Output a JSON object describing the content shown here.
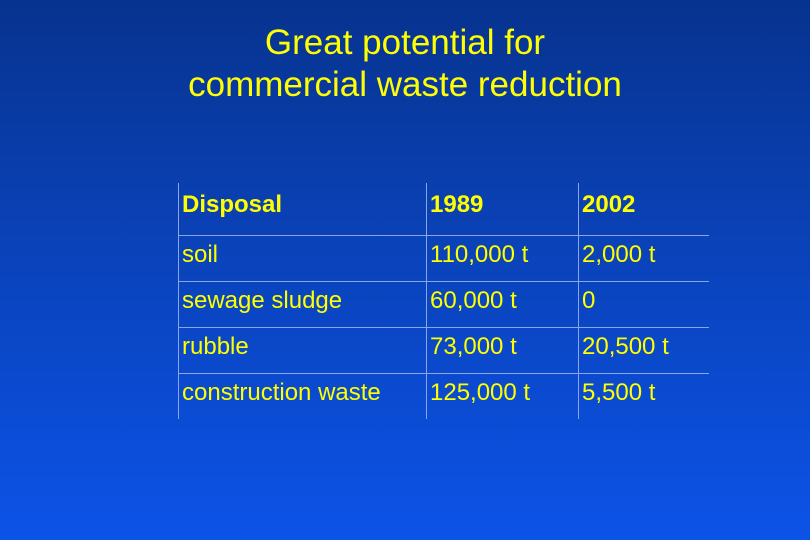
{
  "title": {
    "line1": "Great potential for",
    "line2": "commercial waste reduction"
  },
  "table": {
    "headers": [
      "Disposal",
      "1989",
      "2002"
    ],
    "rows": [
      [
        "soil",
        "110,000 t",
        "2,000 t"
      ],
      [
        "sewage sludge",
        "60,000 t",
        "0"
      ],
      [
        "rubble",
        "73,000 t",
        "20,500 t"
      ],
      [
        "construction waste",
        "125,000 t",
        "5,500 t"
      ]
    ]
  },
  "colors": {
    "text": "#ffff00",
    "background_top": "#07338f",
    "background_bottom": "#0c53e8"
  }
}
